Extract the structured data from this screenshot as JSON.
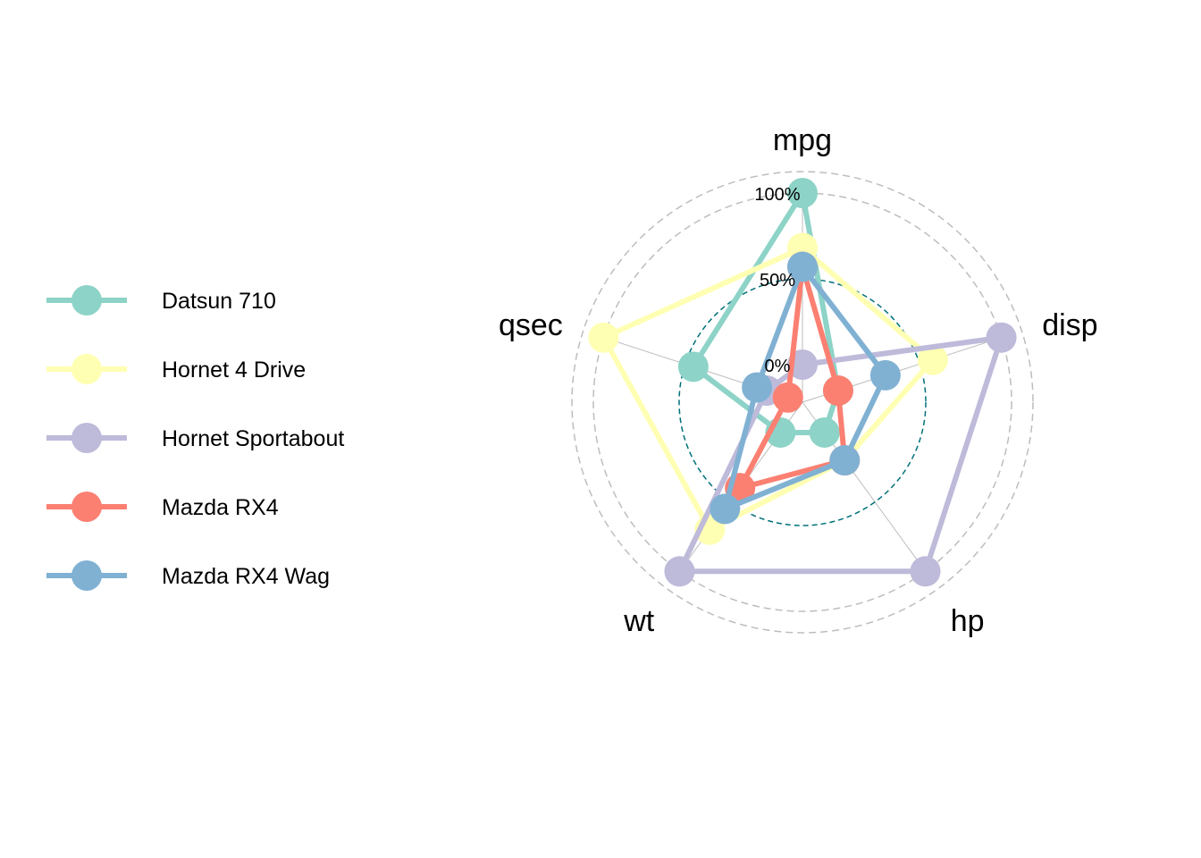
{
  "chart_data": {
    "type": "radar",
    "axes": [
      "mpg",
      "disp",
      "hp",
      "wt",
      "qsec"
    ],
    "grid_labels": [
      "0%",
      "50%",
      "100%"
    ],
    "grid_levels": [
      0,
      0.5,
      1
    ],
    "legend_position": "left",
    "series": [
      {
        "name": "Datsun 710",
        "color": "#8DD3C7",
        "values": [
          1.0,
          0.0,
          0.0,
          0.0,
          0.45
        ]
      },
      {
        "name": "Hornet 4 Drive",
        "color": "#FFFFB3",
        "values": [
          0.68,
          0.58,
          0.2,
          0.7,
          1.0
        ]
      },
      {
        "name": "Hornet Sportabout",
        "color": "#BEBADA",
        "values": [
          0.0,
          1.0,
          1.0,
          1.0,
          0.0
        ]
      },
      {
        "name": "Mazda RX4",
        "color": "#FB8072",
        "values": [
          0.57,
          0.0,
          0.2,
          0.4,
          -0.13
        ]
      },
      {
        "name": "Mazda RX4 Wag",
        "color": "#80B1D3",
        "values": [
          0.57,
          0.29,
          0.2,
          0.55,
          0.06
        ]
      }
    ]
  }
}
